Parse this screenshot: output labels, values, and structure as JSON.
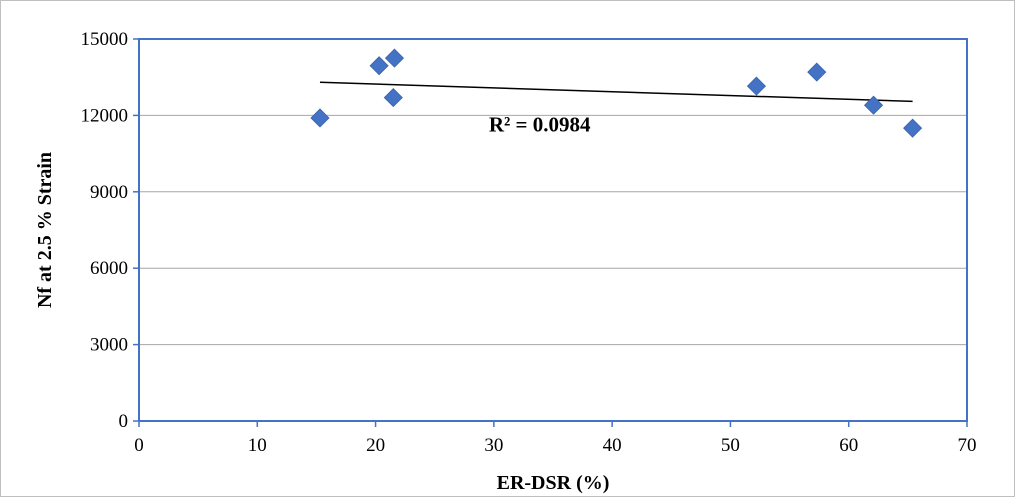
{
  "chart_data": {
    "type": "scatter",
    "title": "",
    "xlabel": "ER-DSR (%)",
    "ylabel": "Nf at 2.5 % Strain",
    "xlim": [
      0,
      70
    ],
    "ylim": [
      0,
      15000
    ],
    "xticks": [
      0,
      10,
      20,
      30,
      40,
      50,
      60,
      70
    ],
    "yticks": [
      0,
      3000,
      6000,
      9000,
      12000,
      15000
    ],
    "grid": "horizontal major gridlines",
    "legend": "none",
    "series": [
      {
        "marker": "diamond",
        "color": "#4472C4",
        "points": [
          {
            "x": 15.3,
            "y": 11900
          },
          {
            "x": 20.3,
            "y": 13950
          },
          {
            "x": 21.6,
            "y": 14250
          },
          {
            "x": 21.5,
            "y": 12700
          },
          {
            "x": 52.2,
            "y": 13150
          },
          {
            "x": 57.3,
            "y": 13700
          },
          {
            "x": 62.1,
            "y": 12400
          },
          {
            "x": 65.4,
            "y": 11500
          }
        ]
      }
    ],
    "trendline": {
      "type": "linear",
      "color": "#000000",
      "start": {
        "x": 15.3,
        "y": 13300
      },
      "end": {
        "x": 65.4,
        "y": 12550
      }
    },
    "annotation": {
      "text": "R² = 0.0984",
      "x": 30,
      "y": 11650
    }
  }
}
